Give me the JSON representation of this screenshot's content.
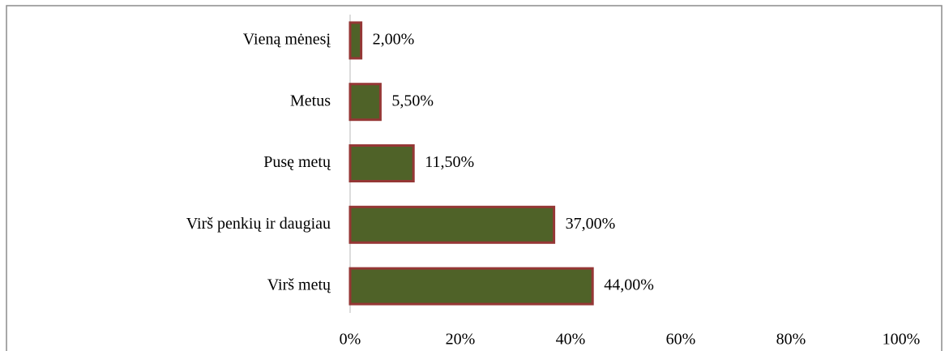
{
  "chart_data": {
    "type": "bar",
    "orientation": "horizontal",
    "categories": [
      "Vieną mėnesį",
      "Metus",
      "Pusę metų",
      "Virš penkių ir daugiau",
      "Virš metų"
    ],
    "values": [
      2,
      5.5,
      11.5,
      37,
      44
    ],
    "value_labels": [
      "2,00%",
      "5,50%",
      "11,50%",
      "37,00%",
      "44,00%"
    ],
    "color": "#4f6228",
    "edge_color": "#953735",
    "xlim": [
      0,
      100
    ],
    "xticks": [
      {
        "value": 0,
        "label": "0%"
      },
      {
        "value": 20,
        "label": "20%"
      },
      {
        "value": 40,
        "label": "40%"
      },
      {
        "value": 60,
        "label": "60%"
      },
      {
        "value": 80,
        "label": "80%"
      },
      {
        "value": 100,
        "label": "100%"
      }
    ]
  }
}
